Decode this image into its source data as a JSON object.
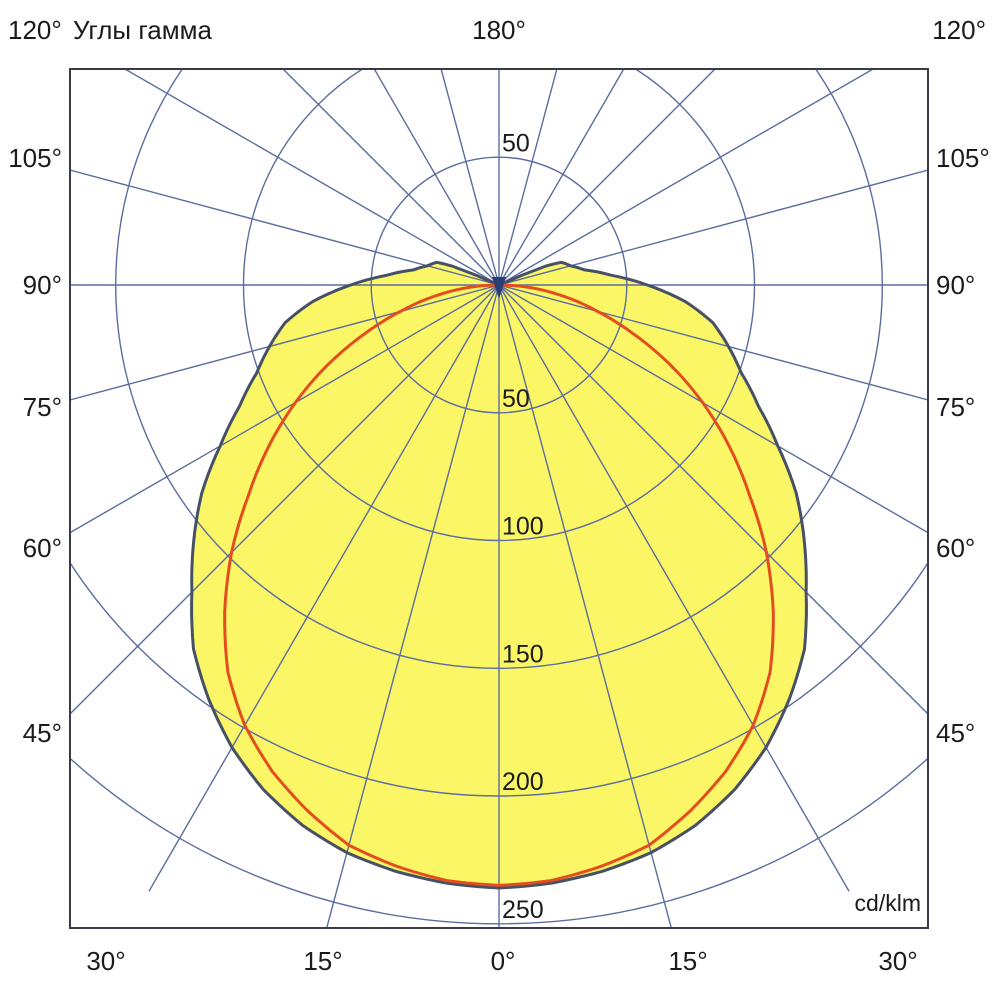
{
  "chart_data": {
    "type": "polar-photometric",
    "title": "Углы гамма",
    "top_angle_label": "180°",
    "corner_angle_label_left": "120°",
    "corner_angle_label_right": "120°",
    "unit_label": "cd/klm",
    "gamma_axis": {
      "step_deg": 15,
      "side_labels": [
        "105°",
        "90°",
        "75°",
        "60°",
        "45°"
      ],
      "bottom_labels": [
        "30°",
        "15°",
        "0°",
        "15°",
        "30°"
      ]
    },
    "intensity_axis": {
      "unit": "cd/klm",
      "tick_values": [
        50,
        100,
        150,
        200,
        250
      ],
      "tick_labels": [
        "50",
        "100",
        "150",
        "200",
        "250"
      ],
      "upper_tick_label": "50",
      "max_plotted": 253
    },
    "series": [
      {
        "name": "curve-1-filled",
        "stroke": "#475166",
        "fill": "#FBF666",
        "symmetric": true,
        "points_gamma_intensity": [
          [
            0,
            236
          ],
          [
            5,
            235
          ],
          [
            10,
            233
          ],
          [
            15,
            230
          ],
          [
            20,
            225
          ],
          [
            25,
            218
          ],
          [
            30,
            209
          ],
          [
            35,
            198
          ],
          [
            40,
            186
          ],
          [
            45,
            170
          ],
          [
            50,
            156
          ],
          [
            55,
            142
          ],
          [
            60,
            126
          ],
          [
            65,
            112
          ],
          [
            70,
            101
          ],
          [
            75,
            93
          ],
          [
            80,
            85
          ],
          [
            85,
            73
          ],
          [
            90,
            58
          ],
          [
            95,
            44
          ],
          [
            100,
            34
          ],
          [
            105,
            29
          ],
          [
            110,
            26
          ],
          [
            112,
            20
          ],
          [
            114,
            0
          ]
        ]
      },
      {
        "name": "curve-2",
        "stroke": "#E34E1F",
        "fill": "none",
        "symmetric": true,
        "points_gamma_intensity": [
          [
            0,
            235
          ],
          [
            5,
            234
          ],
          [
            10,
            231
          ],
          [
            15,
            227
          ],
          [
            20,
            219
          ],
          [
            25,
            210
          ],
          [
            30,
            199
          ],
          [
            35,
            185
          ],
          [
            40,
            167
          ],
          [
            45,
            148
          ],
          [
            50,
            128
          ],
          [
            55,
            110
          ],
          [
            60,
            92
          ],
          [
            65,
            74
          ],
          [
            70,
            56
          ],
          [
            75,
            40
          ],
          [
            80,
            26
          ],
          [
            85,
            13
          ],
          [
            90,
            0
          ]
        ]
      }
    ],
    "colors": {
      "grid": "#5B6CA0",
      "frame": "#3B3B45",
      "text": "#1b1b1b",
      "origin_marker": "#2B3E78"
    }
  }
}
